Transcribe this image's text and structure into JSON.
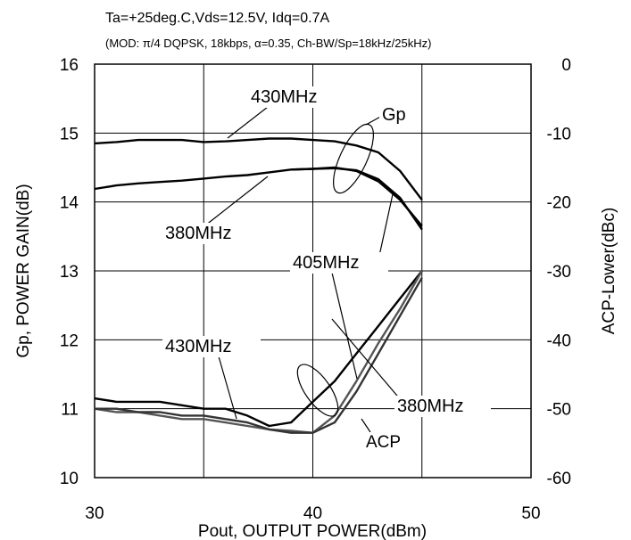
{
  "chart_data": {
    "type": "line",
    "title": "Ta=+25deg.C,Vds=12.5V, Idq=0.7A",
    "subtitle": "(MOD: π/4 DQPSK, 18kbps, α=0.35, Ch-BW/Sp=18kHz/25kHz)",
    "xlabel": "Pout, OUTPUT POWER(dBm)",
    "ylabel": "Gp, POWER GAIN(dB)",
    "y2label": "ACP-Lower(dBc)",
    "xlim": [
      30,
      50
    ],
    "ylim": [
      10,
      16
    ],
    "y2lim": [
      -60,
      0
    ],
    "xticks": [
      30,
      40,
      50
    ],
    "yticks": [
      10,
      11,
      12,
      13,
      14,
      15,
      16
    ],
    "y2ticks": [
      -60,
      -50,
      -40,
      -30,
      -20,
      -10,
      0
    ],
    "grid": true,
    "series": [
      {
        "name": "430MHz",
        "group": "Gp",
        "axis": "left",
        "x": [
          30,
          31,
          32,
          33,
          34,
          35,
          36,
          37,
          38,
          39,
          40,
          41,
          42,
          43,
          44,
          45
        ],
        "y": [
          14.85,
          14.87,
          14.9,
          14.9,
          14.9,
          14.87,
          14.88,
          14.9,
          14.92,
          14.92,
          14.9,
          14.88,
          14.82,
          14.72,
          14.45,
          14.03
        ]
      },
      {
        "name": "405MHz",
        "group": "Gp",
        "axis": "left",
        "x": [
          39,
          40,
          41,
          42,
          43,
          44,
          45
        ],
        "y": [
          14.47,
          14.48,
          14.5,
          14.45,
          14.3,
          14.03,
          13.65
        ]
      },
      {
        "name": "380MHz",
        "group": "Gp",
        "axis": "left",
        "x": [
          30,
          31,
          32,
          33,
          34,
          35,
          36,
          37,
          38,
          39,
          40,
          41,
          42,
          43,
          44,
          45
        ],
        "y": [
          14.19,
          14.24,
          14.27,
          14.29,
          14.31,
          14.34,
          14.37,
          14.39,
          14.43,
          14.47,
          14.48,
          14.49,
          14.46,
          14.33,
          14.06,
          13.6
        ]
      },
      {
        "name": "430MHz",
        "group": "ACP",
        "axis": "right",
        "x": [
          30,
          31,
          32,
          33,
          34,
          35,
          36,
          37,
          38,
          39,
          40,
          41,
          42,
          43,
          44,
          45
        ],
        "y": [
          -48.5,
          -49,
          -49,
          -49,
          -49.5,
          -50,
          -50,
          -51,
          -52.5,
          -52,
          -49,
          -46,
          -42,
          -38,
          -34,
          -30
        ]
      },
      {
        "name": "405MHz",
        "group": "ACP",
        "axis": "right",
        "x": [
          30,
          31,
          32,
          33,
          34,
          35,
          36,
          37,
          38,
          39,
          40,
          41,
          42,
          43,
          44,
          45
        ],
        "y": [
          -50,
          -50.5,
          -50.5,
          -51,
          -51.5,
          -51.5,
          -52,
          -52.5,
          -53,
          -53.2,
          -53.5,
          -51,
          -46,
          -40.5,
          -35.5,
          -30
        ]
      },
      {
        "name": "380MHz",
        "group": "ACP",
        "axis": "right",
        "x": [
          30,
          31,
          32,
          33,
          34,
          35,
          36,
          37,
          38,
          39,
          40,
          41,
          42,
          43,
          44,
          45
        ],
        "y": [
          -50,
          -50,
          -50.5,
          -50.5,
          -51,
          -51,
          -51.5,
          -52,
          -53,
          -53.5,
          -53.5,
          -52,
          -47.5,
          -42,
          -36.5,
          -31
        ]
      }
    ],
    "annotations": [
      "430MHz",
      "380MHz",
      "405MHz",
      "380MHz",
      "430MHz",
      "Gp",
      "ACP"
    ]
  }
}
